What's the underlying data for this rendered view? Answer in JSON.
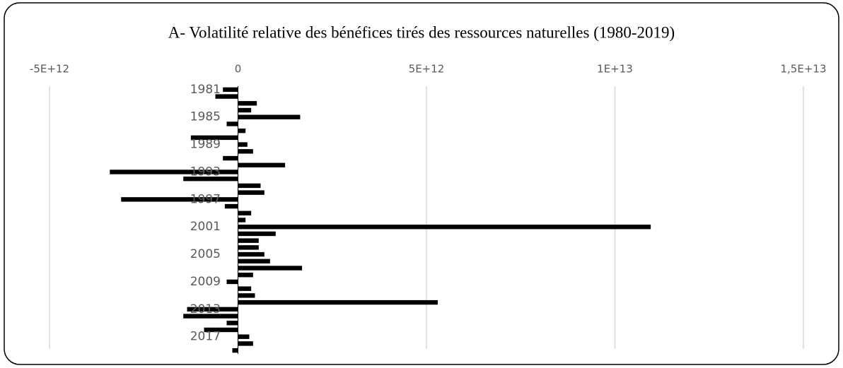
{
  "chart_data": {
    "type": "hbar",
    "title": "A- Volatilité relative des bénéfices tirés des ressources naturelles (1980-2019)",
    "categories": [
      "1981",
      null,
      null,
      null,
      "1985",
      null,
      null,
      null,
      "1989",
      null,
      null,
      null,
      "1993",
      null,
      null,
      null,
      "1997",
      null,
      null,
      null,
      "2001",
      null,
      null,
      null,
      "2005",
      null,
      null,
      null,
      "2009",
      null,
      null,
      null,
      "2013",
      null,
      null,
      null,
      "2017",
      null,
      null
    ],
    "values": [
      -400000000000.0,
      -600000000000.0,
      500000000000.0,
      350000000000.0,
      1650000000000.0,
      -300000000000.0,
      200000000000.0,
      -1250000000000.0,
      250000000000.0,
      400000000000.0,
      -400000000000.0,
      1250000000000.0,
      -3400000000000.0,
      -1450000000000.0,
      600000000000.0,
      700000000000.0,
      -3100000000000.0,
      -350000000000.0,
      350000000000.0,
      200000000000.0,
      10950000000000.0,
      1000000000000.0,
      550000000000.0,
      550000000000.0,
      700000000000.0,
      850000000000.0,
      1700000000000.0,
      400000000000.0,
      -300000000000.0,
      350000000000.0,
      450000000000.0,
      5300000000000.0,
      -1350000000000.0,
      -1450000000000.0,
      -300000000000.0,
      -900000000000.0,
      300000000000.0,
      400000000000.0,
      -150000000000.0
    ],
    "color": "#000000",
    "xlim": [
      -5000000000000.0,
      15000000000000.0
    ],
    "xticks": [
      {
        "value": -5000000000000.0,
        "label": "-5E+12"
      },
      0,
      {
        "value": 5000000000000.0,
        "label": "5E+12"
      },
      {
        "value": 10000000000000.0,
        "label": "1E+13"
      },
      {
        "value": 15000000000000.0,
        "label": "1,5E+13"
      }
    ],
    "grid": true
  }
}
